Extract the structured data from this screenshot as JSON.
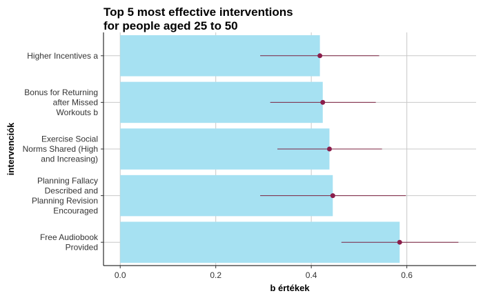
{
  "chart_data": {
    "type": "bar",
    "orientation": "horizontal",
    "title_lines": [
      "Top 5 most effective interventions",
      "for people aged 25 to 50"
    ],
    "xlabel": "b értékek",
    "ylabel": "intervenciók",
    "xlim": [
      -0.035,
      0.745
    ],
    "xticks": [
      0.0,
      0.2,
      0.4,
      0.6
    ],
    "xtick_labels": [
      "0.0",
      "0.2",
      "0.4",
      "0.6"
    ],
    "grid": true,
    "bar_color": "#a6e1f2",
    "point_color": "#8b1e4b",
    "errorbar_color": "#7a1f3e",
    "categories": [
      {
        "label_lines": [
          "Higher Incentives a"
        ],
        "value": 0.418,
        "low": 0.293,
        "high": 0.542
      },
      {
        "label_lines": [
          "Bonus for Returning",
          "after Missed",
          "Workouts b"
        ],
        "value": 0.424,
        "low": 0.314,
        "high": 0.535
      },
      {
        "label_lines": [
          "Exercise Social",
          "Norms Shared (High",
          "and Increasing)"
        ],
        "value": 0.438,
        "low": 0.329,
        "high": 0.548
      },
      {
        "label_lines": [
          "Planning Fallacy",
          "Described and",
          "Planning Revision",
          "Encouraged"
        ],
        "value": 0.445,
        "low": 0.293,
        "high": 0.598
      },
      {
        "label_lines": [
          "Free Audiobook",
          "Provided"
        ],
        "value": 0.585,
        "low": 0.463,
        "high": 0.708
      }
    ]
  }
}
